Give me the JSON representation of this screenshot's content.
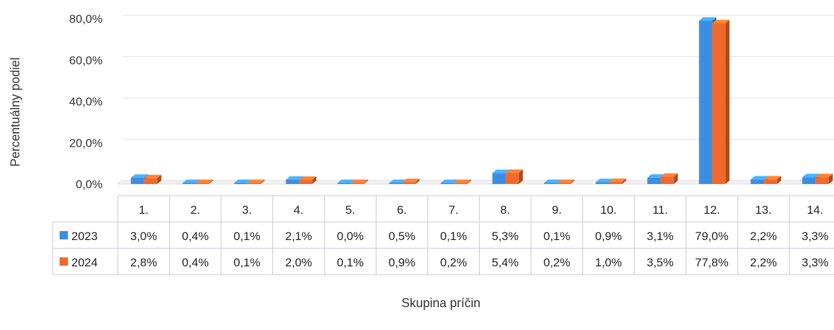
{
  "chart_data": {
    "type": "bar",
    "ylabel": "Percentuálny podiel",
    "xlabel": "Skupina príčin",
    "ylim": [
      0,
      80
    ],
    "yticks": [
      "0,0%",
      "20,0%",
      "40,0%",
      "60,0%",
      "80,0%"
    ],
    "ytick_values": [
      0,
      20,
      40,
      60,
      80
    ],
    "grid": true,
    "legend": "data-table",
    "categories": [
      "1.",
      "2.",
      "3.",
      "4.",
      "5.",
      "6.",
      "7.",
      "8.",
      "9.",
      "10.",
      "11.",
      "12.",
      "13.",
      "14."
    ],
    "series": [
      {
        "name": "2023",
        "color": "#3b8fe3",
        "values": [
          3.0,
          0.4,
          0.1,
          2.1,
          0.0,
          0.5,
          0.1,
          5.3,
          0.1,
          0.9,
          3.1,
          79.0,
          2.2,
          3.3
        ],
        "labels": [
          "3,0%",
          "0,4%",
          "0,1%",
          "2,1%",
          "0,0%",
          "0,5%",
          "0,1%",
          "5,3%",
          "0,1%",
          "0,9%",
          "3,1%",
          "79,0%",
          "2,2%",
          "3,3%"
        ]
      },
      {
        "name": "2024",
        "color": "#ef6a2c",
        "values": [
          2.8,
          0.4,
          0.1,
          2.0,
          0.1,
          0.9,
          0.2,
          5.4,
          0.2,
          1.0,
          3.5,
          77.8,
          2.2,
          3.3
        ],
        "labels": [
          "2,8%",
          "0,4%",
          "0,1%",
          "2,0%",
          "0,1%",
          "0,9%",
          "0,2%",
          "5,4%",
          "0,2%",
          "1,0%",
          "3,5%",
          "77,8%",
          "2,2%",
          "3,3%"
        ]
      }
    ]
  }
}
